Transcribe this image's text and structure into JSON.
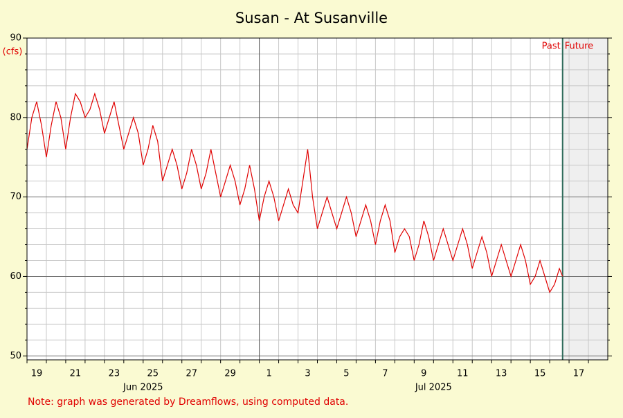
{
  "chart_data": {
    "type": "line",
    "title": "Susan - At Susanville",
    "y_label": "(cfs)",
    "note": "Note: graph was generated by Dreamflows, using computed data.",
    "past_label": "Past",
    "future_label": "Future",
    "now": "2025-07-16T16:00",
    "ylim": [
      49.5,
      90
    ],
    "yticks": [
      50,
      60,
      70,
      80,
      90
    ],
    "y_minor_ticks": [
      52,
      54,
      56,
      58,
      62,
      64,
      66,
      68,
      72,
      74,
      76,
      78,
      82,
      84,
      86,
      88
    ],
    "xlim": [
      "2025-06-19",
      "2025-07-19"
    ],
    "xticks": [
      {
        "value": "2025-06-19",
        "label": "19"
      },
      {
        "value": "2025-06-21",
        "label": "21"
      },
      {
        "value": "2025-06-23",
        "label": "23"
      },
      {
        "value": "2025-06-25",
        "label": "25"
      },
      {
        "value": "2025-06-27",
        "label": "27"
      },
      {
        "value": "2025-06-29",
        "label": "29"
      },
      {
        "value": "2025-07-01",
        "label": "1"
      },
      {
        "value": "2025-07-03",
        "label": "3"
      },
      {
        "value": "2025-07-05",
        "label": "5"
      },
      {
        "value": "2025-07-07",
        "label": "7"
      },
      {
        "value": "2025-07-09",
        "label": "9"
      },
      {
        "value": "2025-07-11",
        "label": "11"
      },
      {
        "value": "2025-07-13",
        "label": "13"
      },
      {
        "value": "2025-07-15",
        "label": "15"
      },
      {
        "value": "2025-07-17",
        "label": "17"
      }
    ],
    "x_minor_ticks": [
      "2025-06-20",
      "2025-06-22",
      "2025-06-24",
      "2025-06-26",
      "2025-06-28",
      "2025-06-30",
      "2025-07-02",
      "2025-07-04",
      "2025-07-06",
      "2025-07-08",
      "2025-07-10",
      "2025-07-12",
      "2025-07-14",
      "2025-07-16",
      "2025-07-18"
    ],
    "x_major_grid": [
      "2025-07-01"
    ],
    "month_labels": [
      {
        "value": "2025-06-25",
        "label": "Jun 2025"
      },
      {
        "value": "2025-07-10",
        "label": "Jul 2025"
      }
    ],
    "grid": true,
    "series": [
      {
        "color": "#e00000",
        "x": [
          "2025-06-19T00:00",
          "2025-06-19T06:00",
          "2025-06-19T12:00",
          "2025-06-19T18:00",
          "2025-06-20T00:00",
          "2025-06-20T06:00",
          "2025-06-20T12:00",
          "2025-06-20T18:00",
          "2025-06-21T00:00",
          "2025-06-21T06:00",
          "2025-06-21T12:00",
          "2025-06-21T18:00",
          "2025-06-22T00:00",
          "2025-06-22T06:00",
          "2025-06-22T12:00",
          "2025-06-22T18:00",
          "2025-06-23T00:00",
          "2025-06-23T06:00",
          "2025-06-23T12:00",
          "2025-06-23T18:00",
          "2025-06-24T00:00",
          "2025-06-24T06:00",
          "2025-06-24T12:00",
          "2025-06-24T18:00",
          "2025-06-25T00:00",
          "2025-06-25T06:00",
          "2025-06-25T12:00",
          "2025-06-25T18:00",
          "2025-06-26T00:00",
          "2025-06-26T06:00",
          "2025-06-26T12:00",
          "2025-06-26T18:00",
          "2025-06-27T00:00",
          "2025-06-27T06:00",
          "2025-06-27T12:00",
          "2025-06-27T18:00",
          "2025-06-28T00:00",
          "2025-06-28T06:00",
          "2025-06-28T12:00",
          "2025-06-28T18:00",
          "2025-06-29T00:00",
          "2025-06-29T06:00",
          "2025-06-29T12:00",
          "2025-06-29T18:00",
          "2025-06-30T00:00",
          "2025-06-30T06:00",
          "2025-06-30T12:00",
          "2025-06-30T18:00",
          "2025-07-01T00:00",
          "2025-07-01T06:00",
          "2025-07-01T12:00",
          "2025-07-01T18:00",
          "2025-07-02T00:00",
          "2025-07-02T06:00",
          "2025-07-02T12:00",
          "2025-07-02T18:00",
          "2025-07-03T00:00",
          "2025-07-03T06:00",
          "2025-07-03T12:00",
          "2025-07-03T18:00",
          "2025-07-04T00:00",
          "2025-07-04T06:00",
          "2025-07-04T12:00",
          "2025-07-04T18:00",
          "2025-07-05T00:00",
          "2025-07-05T06:00",
          "2025-07-05T12:00",
          "2025-07-05T18:00",
          "2025-07-06T00:00",
          "2025-07-06T06:00",
          "2025-07-06T12:00",
          "2025-07-06T18:00",
          "2025-07-07T00:00",
          "2025-07-07T06:00",
          "2025-07-07T12:00",
          "2025-07-07T18:00",
          "2025-07-08T00:00",
          "2025-07-08T06:00",
          "2025-07-08T12:00",
          "2025-07-08T18:00",
          "2025-07-09T00:00",
          "2025-07-09T06:00",
          "2025-07-09T12:00",
          "2025-07-09T18:00",
          "2025-07-10T00:00",
          "2025-07-10T06:00",
          "2025-07-10T12:00",
          "2025-07-10T18:00",
          "2025-07-11T00:00",
          "2025-07-11T06:00",
          "2025-07-11T12:00",
          "2025-07-11T18:00",
          "2025-07-12T00:00",
          "2025-07-12T06:00",
          "2025-07-12T12:00",
          "2025-07-12T18:00",
          "2025-07-13T00:00",
          "2025-07-13T06:00",
          "2025-07-13T12:00",
          "2025-07-13T18:00",
          "2025-07-14T00:00",
          "2025-07-14T06:00",
          "2025-07-14T12:00",
          "2025-07-14T18:00",
          "2025-07-15T00:00",
          "2025-07-15T06:00",
          "2025-07-15T12:00",
          "2025-07-15T18:00",
          "2025-07-16T00:00",
          "2025-07-16T06:00",
          "2025-07-16T12:00",
          "2025-07-16T16:00"
        ],
        "values": [
          76,
          80,
          82,
          79,
          75,
          79,
          82,
          80,
          76,
          80,
          83,
          82,
          80,
          81,
          83,
          81,
          78,
          80,
          82,
          79,
          76,
          78,
          80,
          78,
          74,
          76,
          79,
          77,
          72,
          74,
          76,
          74,
          71,
          73,
          76,
          74,
          71,
          73,
          76,
          73,
          70,
          72,
          74,
          72,
          69,
          71,
          74,
          71,
          67,
          70,
          72,
          70,
          67,
          69,
          71,
          69,
          68,
          72,
          76,
          70,
          66,
          68,
          70,
          68,
          66,
          68,
          70,
          68,
          65,
          67,
          69,
          67,
          64,
          67,
          69,
          67,
          63,
          65,
          66,
          65,
          62,
          64,
          67,
          65,
          62,
          64,
          66,
          64,
          62,
          64,
          66,
          64,
          61,
          63,
          65,
          63,
          60,
          62,
          64,
          62,
          60,
          62,
          64,
          62,
          59,
          60,
          62,
          60,
          58,
          59,
          61,
          60
        ]
      }
    ]
  }
}
